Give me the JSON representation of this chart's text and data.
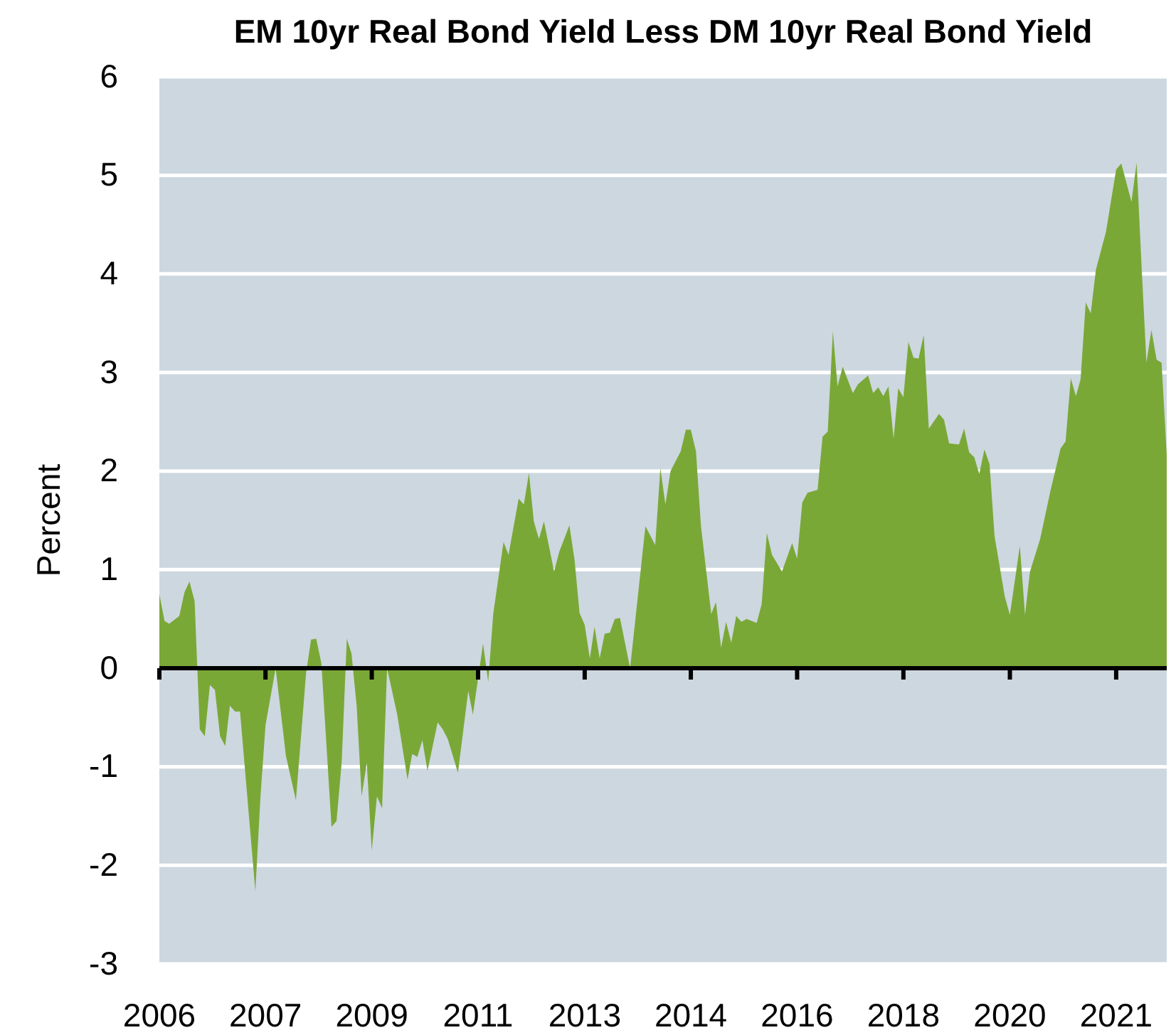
{
  "chart_data": {
    "type": "area",
    "title": "EM 10yr Real Bond Yield Less DM 10yr Real Bond Yield",
    "ylabel": "Percent",
    "xlim": [
      "2006-01",
      "2022-08"
    ],
    "ylim": [
      -3,
      6
    ],
    "yticks": [
      -3,
      -2,
      -1,
      0,
      1,
      2,
      3,
      4,
      5,
      6
    ],
    "xticks": [
      {
        "value": "2006-01",
        "label": "2006"
      },
      {
        "value": "2007-10",
        "label": "2007"
      },
      {
        "value": "2009-07",
        "label": "2009"
      },
      {
        "value": "2011-04",
        "label": "2011"
      },
      {
        "value": "2013-01",
        "label": "2013"
      },
      {
        "value": "2014-10",
        "label": "2014"
      },
      {
        "value": "2016-07",
        "label": "2016"
      },
      {
        "value": "2018-04",
        "label": "2018"
      },
      {
        "value": "2020-01",
        "label": "2020"
      },
      {
        "value": "2021-10",
        "label": "2021"
      }
    ],
    "grid": "y",
    "x": [
      "2006-01",
      "2006-02",
      "2006-03",
      "2006-05",
      "2006-06",
      "2006-07",
      "2006-08",
      "2006-09",
      "2006-10",
      "2006-11",
      "2006-12",
      "2007-01",
      "2007-02",
      "2007-03",
      "2007-04",
      "2007-05",
      "2007-08",
      "2007-09",
      "2007-10",
      "2007-12",
      "2008-02",
      "2008-04",
      "2008-06",
      "2008-07",
      "2008-08",
      "2008-09",
      "2008-11",
      "2008-12",
      "2009-01",
      "2009-02",
      "2009-03",
      "2009-04",
      "2009-05",
      "2009-06",
      "2009-07",
      "2009-08",
      "2009-09",
      "2009-10",
      "2009-12",
      "2010-02",
      "2010-03",
      "2010-04",
      "2010-05",
      "2010-06",
      "2010-08",
      "2010-09",
      "2010-10",
      "2010-12",
      "2011-02",
      "2011-03",
      "2011-05",
      "2011-06",
      "2011-07",
      "2011-09",
      "2011-10",
      "2011-12",
      "2012-01",
      "2012-02",
      "2012-03",
      "2012-04",
      "2012-05",
      "2012-07",
      "2012-08",
      "2012-10",
      "2012-11",
      "2012-12",
      "2013-01",
      "2013-02",
      "2013-03",
      "2013-04",
      "2013-05",
      "2013-06",
      "2013-07",
      "2013-08",
      "2013-10",
      "2014-01",
      "2014-03",
      "2014-04",
      "2014-05",
      "2014-06",
      "2014-08",
      "2014-09",
      "2014-10",
      "2014-11",
      "2014-12",
      "2015-02",
      "2015-03",
      "2015-04",
      "2015-05",
      "2015-06",
      "2015-07",
      "2015-08",
      "2015-09",
      "2015-11",
      "2015-12",
      "2016-01",
      "2016-02",
      "2016-04",
      "2016-06",
      "2016-07",
      "2016-08",
      "2016-09",
      "2016-11",
      "2016-12",
      "2017-01",
      "2017-02",
      "2017-03",
      "2017-04",
      "2017-06",
      "2017-07",
      "2017-09",
      "2017-10",
      "2017-11",
      "2017-12",
      "2018-01",
      "2018-02",
      "2018-03",
      "2018-04",
      "2018-05",
      "2018-06",
      "2018-07",
      "2018-08",
      "2018-09",
      "2018-11",
      "2018-12",
      "2019-01",
      "2019-03",
      "2019-04",
      "2019-05",
      "2019-06",
      "2019-07",
      "2019-08",
      "2019-09",
      "2019-10",
      "2019-12",
      "2020-01",
      "2020-03",
      "2020-04",
      "2020-05",
      "2020-07",
      "2020-09",
      "2020-11",
      "2020-12",
      "2021-01",
      "2021-02",
      "2021-03",
      "2021-04",
      "2021-05",
      "2021-06",
      "2021-08",
      "2021-10",
      "2021-11",
      "2022-01",
      "2022-02",
      "2022-03",
      "2022-04",
      "2022-05",
      "2022-06",
      "2022-07",
      "2022-08"
    ],
    "series": [
      {
        "color": "#7aa837",
        "values": [
          0.75,
          0.48,
          0.45,
          0.53,
          0.77,
          0.88,
          0.68,
          -0.62,
          -0.69,
          -0.17,
          -0.22,
          -0.69,
          -0.79,
          -0.38,
          -0.44,
          -0.44,
          -2.26,
          -1.3,
          -0.58,
          0,
          -0.89,
          -1.34,
          -0.05,
          0.29,
          0.3,
          0.05,
          -1.61,
          -1.55,
          -0.96,
          0.3,
          0.15,
          -0.38,
          -1.3,
          -0.96,
          -1.85,
          -1.3,
          -1.42,
          0,
          -0.47,
          -1.13,
          -0.87,
          -0.9,
          -0.73,
          -1.04,
          -0.55,
          -0.62,
          -0.72,
          -1.06,
          -0.23,
          -0.47,
          0.25,
          -0.14,
          0.55,
          1.28,
          1.15,
          1.72,
          1.66,
          1.98,
          1.49,
          1.31,
          1.49,
          0.98,
          1.18,
          1.45,
          1.1,
          0.56,
          0.44,
          0.1,
          0.42,
          0.1,
          0.35,
          0.36,
          0.5,
          0.51,
          0,
          1.44,
          1.25,
          2.03,
          1.66,
          2.0,
          2.2,
          2.42,
          2.42,
          2.2,
          1.44,
          0.55,
          0.67,
          0.21,
          0.47,
          0.26,
          0.53,
          0.47,
          0.5,
          0.46,
          0.65,
          1.37,
          1.15,
          0.98,
          1.27,
          1.11,
          1.68,
          1.78,
          1.81,
          2.35,
          2.4,
          3.42,
          2.86,
          3.06,
          2.79,
          2.88,
          2.97,
          2.79,
          2.85,
          2.76,
          2.86,
          2.33,
          2.84,
          2.75,
          3.31,
          3.15,
          3.14,
          3.38,
          2.43,
          2.58,
          2.52,
          2.28,
          2.27,
          2.43,
          2.19,
          2.14,
          1.97,
          2.22,
          2.07,
          1.34,
          0.73,
          0.54,
          1.24,
          0.54,
          0.98,
          1.31,
          1.8,
          2.23,
          2.3,
          2.94,
          2.76,
          2.93,
          3.71,
          3.6,
          4.04,
          4.43,
          5.06,
          5.12,
          4.73,
          5.13,
          4.14,
          3.1,
          3.43,
          3.13,
          3.1,
          2.16
        ]
      }
    ]
  }
}
